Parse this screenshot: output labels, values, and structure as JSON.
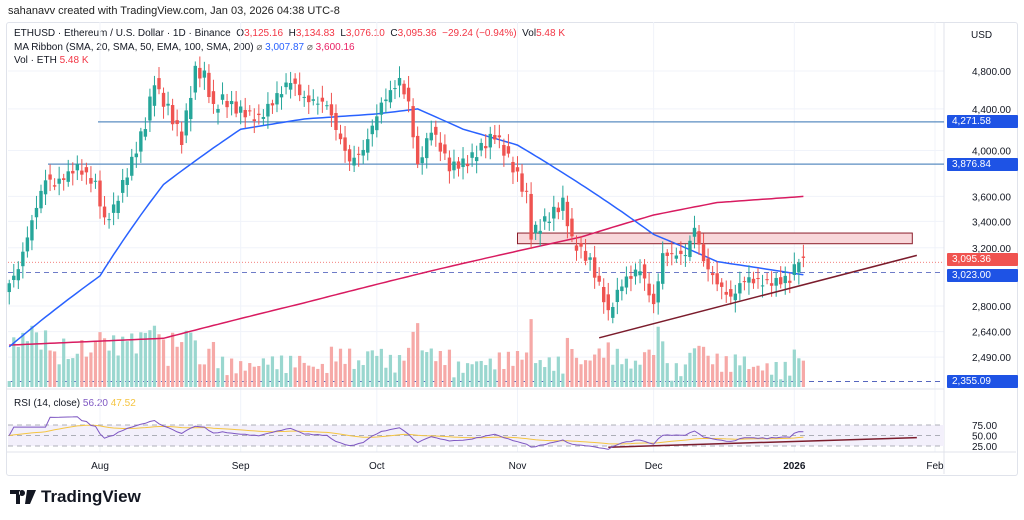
{
  "credit": "sahanavv created with TradingView.com, Jan 03, 2026 04:38 UTC-8",
  "legend": {
    "symbol": "ETHUSD · Ethereum / U.S. Dollar · 1D · Binance",
    "o_label": "O",
    "o": "3,125.16",
    "h_label": "H",
    "h": "3,134.83",
    "l_label": "L",
    "l": "3,076.10",
    "c_label": "C",
    "c": "3,095.36",
    "change": "−29.24 (−0.94%)",
    "vol_label": "Vol",
    "vol": "5.48 K",
    "ma": "MA Ribbon (SMA, 20, SMA, 50, EMA, 100, SMA, 200)",
    "ma_val1": "3,007.87",
    "ma_val2": "3,600.16",
    "vol_eth": "Vol · ETH",
    "vol_eth_val": "5.48 K",
    "rsi": "RSI (14, close)",
    "rsi_val": "56.20",
    "rsi_ma_val": "47.52"
  },
  "axis": {
    "currency": "USD",
    "price_ticks": [
      "4,800.00",
      "4,400.00",
      "4,000.00",
      "3,600.00",
      "3,400.00",
      "3,200.00",
      "2,800.00",
      "2,640.00",
      "2,490.00"
    ],
    "rsi_ticks": [
      "75.00",
      "50.00",
      "25.00"
    ],
    "time_ticks": [
      {
        "label": "Aug",
        "date": "2025-08-01"
      },
      {
        "label": "Sep",
        "date": "2025-09-01"
      },
      {
        "label": "Oct",
        "date": "2025-10-01"
      },
      {
        "label": "Nov",
        "date": "2025-11-01"
      },
      {
        "label": "Dec",
        "date": "2025-12-01"
      },
      {
        "label": "2026",
        "date": "2026-01-01",
        "bold": true
      },
      {
        "label": "Feb",
        "date": "2026-02-01"
      }
    ]
  },
  "price_tags": [
    {
      "label": "4,271.58",
      "color": "#1e53e5"
    },
    {
      "label": "3,876.84",
      "color": "#1e53e5"
    },
    {
      "label": "3,095.36",
      "color": "#f05350"
    },
    {
      "label": "3,023.00",
      "color": "#1e53e5"
    },
    {
      "label": "2,355.09",
      "color": "#1e53e5"
    }
  ],
  "brand": "TradingView",
  "colors": {
    "up": "#26a69a",
    "down": "#ef5350",
    "sma50": "#2962ff",
    "sma200": "#d81b60",
    "hline": "#5b8ec2",
    "trend": "#7b1c2c",
    "zone_fill": "#f8d7da",
    "zone_stroke": "#8b1e2b",
    "rsi": "#7e57c2",
    "rsi_ma": "#f5c542"
  },
  "chart_data": {
    "type": "candlestick",
    "scale": "log",
    "ylim": [
      2300,
      5000
    ],
    "close_keypoints": [
      [
        "2025-07-12",
        2950
      ],
      [
        "2025-07-14",
        3050
      ],
      [
        "2025-07-17",
        3400
      ],
      [
        "2025-07-20",
        3750
      ],
      [
        "2025-07-22",
        3700
      ],
      [
        "2025-07-27",
        3850
      ],
      [
        "2025-07-31",
        3700
      ],
      [
        "2025-08-02",
        3400
      ],
      [
        "2025-08-04",
        3500
      ],
      [
        "2025-08-08",
        3900
      ],
      [
        "2025-08-11",
        4250
      ],
      [
        "2025-08-13",
        4700
      ],
      [
        "2025-08-14",
        4550
      ],
      [
        "2025-08-16",
        4400
      ],
      [
        "2025-08-19",
        4100
      ],
      [
        "2025-08-22",
        4800
      ],
      [
        "2025-08-24",
        4750
      ],
      [
        "2025-08-26",
        4400
      ],
      [
        "2025-08-28",
        4500
      ],
      [
        "2025-08-31",
        4400
      ],
      [
        "2025-09-05",
        4300
      ],
      [
        "2025-09-12",
        4700
      ],
      [
        "2025-09-15",
        4500
      ],
      [
        "2025-09-20",
        4450
      ],
      [
        "2025-09-22",
        4200
      ],
      [
        "2025-09-25",
        3900
      ],
      [
        "2025-09-28",
        4000
      ],
      [
        "2025-10-02",
        4450
      ],
      [
        "2025-10-06",
        4700
      ],
      [
        "2025-10-08",
        4450
      ],
      [
        "2025-10-10",
        3850
      ],
      [
        "2025-10-13",
        4200
      ],
      [
        "2025-10-17",
        3850
      ],
      [
        "2025-10-21",
        3900
      ],
      [
        "2025-10-27",
        4150
      ],
      [
        "2025-10-31",
        3850
      ],
      [
        "2025-11-03",
        3600
      ],
      [
        "2025-11-04",
        3300
      ],
      [
        "2025-11-07",
        3400
      ],
      [
        "2025-11-11",
        3550
      ],
      [
        "2025-11-13",
        3250
      ],
      [
        "2025-11-17",
        3100
      ],
      [
        "2025-11-20",
        2850
      ],
      [
        "2025-11-21",
        2750
      ],
      [
        "2025-11-24",
        2950
      ],
      [
        "2025-11-28",
        3050
      ],
      [
        "2025-12-01",
        2800
      ],
      [
        "2025-12-03",
        3150
      ],
      [
        "2025-12-08",
        3150
      ],
      [
        "2025-12-10",
        3350
      ],
      [
        "2025-12-12",
        3100
      ],
      [
        "2025-12-15",
        2950
      ],
      [
        "2025-12-18",
        2850
      ],
      [
        "2025-12-21",
        2980
      ],
      [
        "2025-12-26",
        2950
      ],
      [
        "2025-12-31",
        2980
      ],
      [
        "2026-01-02",
        3125
      ],
      [
        "2026-01-03",
        3095.36
      ]
    ],
    "sma50_keypoints": [
      [
        "2025-07-12",
        2550
      ],
      [
        "2025-08-01",
        3000
      ],
      [
        "2025-08-15",
        3700
      ],
      [
        "2025-09-01",
        4200
      ],
      [
        "2025-09-15",
        4300
      ],
      [
        "2025-10-01",
        4350
      ],
      [
        "2025-10-10",
        4400
      ],
      [
        "2025-10-20",
        4200
      ],
      [
        "2025-11-01",
        4050
      ],
      [
        "2025-11-15",
        3700
      ],
      [
        "2025-12-01",
        3300
      ],
      [
        "2025-12-15",
        3100
      ],
      [
        "2026-01-03",
        3008
      ]
    ],
    "sma200_keypoints": [
      [
        "2025-07-12",
        2560
      ],
      [
        "2025-08-15",
        2600
      ],
      [
        "2025-09-15",
        2820
      ],
      [
        "2025-10-15",
        3050
      ],
      [
        "2025-11-15",
        3280
      ],
      [
        "2025-12-01",
        3450
      ],
      [
        "2025-12-15",
        3550
      ],
      [
        "2026-01-03",
        3600
      ]
    ],
    "horizontal_levels": [
      4271.58,
      3876.84
    ],
    "dashed_levels": [
      3023.0,
      2355.09
    ],
    "last_price": 3095.36,
    "resistance_zone": {
      "from": "2025-11-01",
      "to": "2026-01-27",
      "low": 3230,
      "high": 3310
    },
    "price_trendline": [
      [
        "2025-11-19",
        2603
      ],
      [
        "2026-01-28",
        3145
      ]
    ],
    "rsi_levels": [
      75,
      50,
      25
    ],
    "rsi_trendline": [
      [
        "2025-11-21",
        22
      ],
      [
        "2026-01-28",
        45
      ]
    ]
  }
}
